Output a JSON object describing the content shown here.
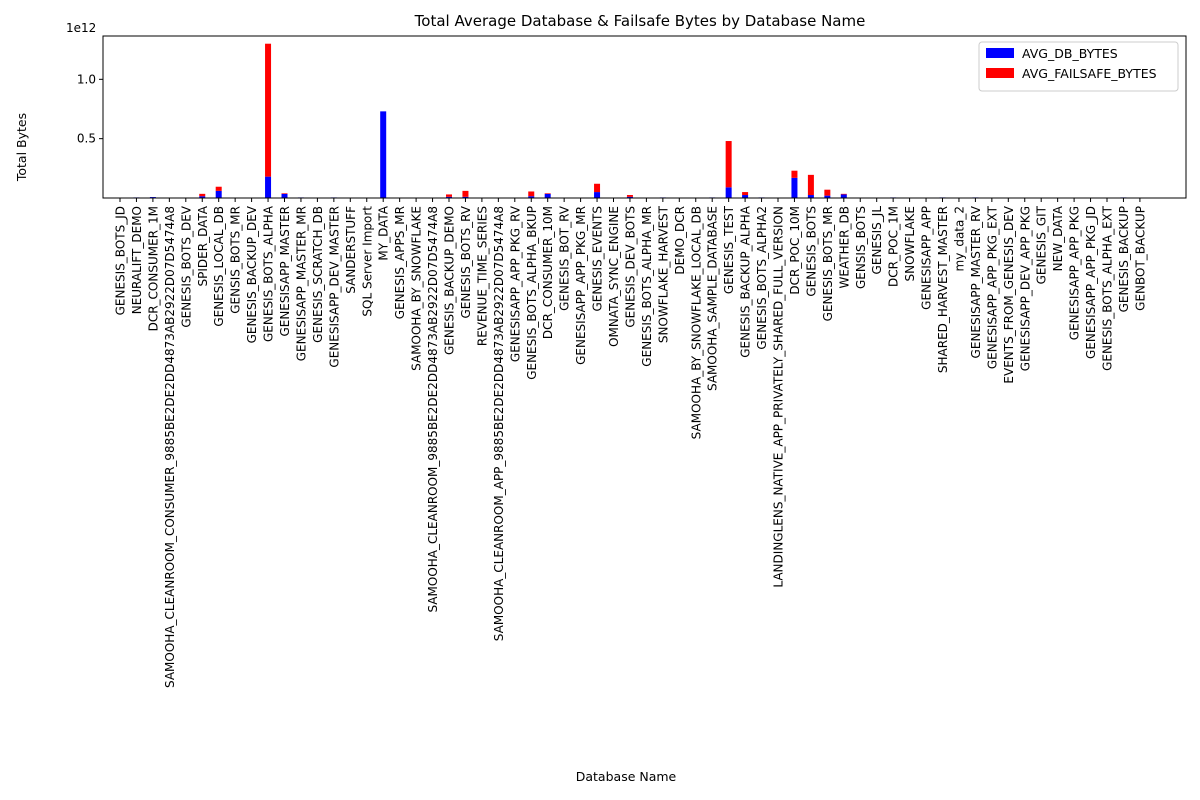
{
  "chart_data": {
    "type": "bar",
    "stacked": true,
    "title": "Total Average Database & Failsafe Bytes by Database Name",
    "xlabel": "Database Name",
    "ylabel": "Total Bytes",
    "y_offset_label": "1e12",
    "ylim": [
      0,
      1365000000000.0
    ],
    "yticks": [
      500000000000.0,
      1000000000000.0
    ],
    "ytick_labels": [
      "0.5",
      "1.0"
    ],
    "legend_position": "top-right",
    "grid": false,
    "categories": [
      "GENESIS_BOTS_JD",
      "NEURALIFT_DEMO",
      "DCR_CONSUMER_1M",
      "SAMOOHA_CLEANROOM_CONSUMER_9885BE2DE2DD4873AB2922D07D5474A8",
      "GENESIS_BOTS_DEV",
      "SPIDER_DATA",
      "GENESIS_LOCAL_DB",
      "GENSIS_BOTS_MR",
      "GENESIS_BACKUP_DEV",
      "GENESIS_BOTS_ALPHA",
      "GENESISAPP_MASTER",
      "GENESISAPP_MASTER_MR",
      "GENESIS_SCRATCH_DB",
      "GENESISAPP_DEV_MASTER",
      "SANDERSTUFF",
      "SQL Server Import",
      "MY_DATA",
      "GENESIS_APPS_MR",
      "SAMOOHA_BY_SNOWFLAKE",
      "SAMOOHA_CLEANROOM_9885BE2DE2DD4873AB2922D07D5474A8",
      "GENESIS_BACKUP_DEMO",
      "GENESIS_BOTS_RV",
      "REVENUE_TIME_SERIES",
      "SAMOOHA_CLEANROOM_APP_9885BE2DE2DD4873AB2922D07D5474A8",
      "GENESISAPP_APP_PKG_RV",
      "GENESIS_BOTS_ALPHA_BKUP",
      "DCR_CONSUMER_10M",
      "GENESIS_BOT_RV",
      "GENESISAPP_APP_PKG_MR",
      "GENESIS_EVENTS",
      "OMNATA_SYNC_ENGINE",
      "GENESIS_DEV_BOTS",
      "GENESIS_BOTS_ALPHA_MR",
      "SNOWFLAKE_HARVEST",
      "DEMO_DCR",
      "SAMOOHA_BY_SNOWFLAKE_LOCAL_DB",
      "SAMOOHA_SAMPLE_DATABASE",
      "GENESIS_TEST",
      "GENESIS_BACKUP_ALPHA",
      "GENESIS_BOTS_ALPHA2",
      "LANDINGLENS_NATIVE_APP_PRIVATELY_SHARED_FULL_VERSION",
      "DCR_POC_10M",
      "GENESIS_BOTS",
      "GENESIS_BOTS_MR",
      "WEATHER_DB",
      "GENSIS_BOTS",
      "GENESIS_JL",
      "DCR_POC_1M",
      "SNOWFLAKE",
      "GENESISAPP_APP",
      "SHARED_HARVEST_MASTER",
      "my_data_2",
      "GENESISAPP_MASTER_RV",
      "GENESISAPP_APP_PKG_EXT",
      "EVENTS_FROM_GENESIS_DEV",
      "GENESISAPP_DEV_APP_PKG",
      "GENESIS_GIT",
      "NEW_DATA",
      "GENESISAPP_APP_PKG",
      "GENESISAPP_APP_PKG_JD",
      "GENESIS_BOTS_ALPHA_EXT",
      "GENESIS_BACKUP",
      "GENBOT_BACKUP"
    ],
    "series": [
      {
        "name": "AVG_DB_BYTES",
        "color": "#0000ff",
        "values": [
          0,
          5000000000.0,
          8000000000.0,
          0,
          0,
          15000000000.0,
          60000000000.0,
          0,
          0,
          180000000000.0,
          35000000000.0,
          5000000000.0,
          0,
          5000000000.0,
          0,
          0,
          730000000000.0,
          0,
          0,
          0,
          10000000000.0,
          10000000000.0,
          0,
          0,
          0,
          15000000000.0,
          35000000000.0,
          0,
          0,
          50000000000.0,
          0,
          10000000000.0,
          0,
          5000000000.0,
          0,
          0,
          5000000000.0,
          90000000000.0,
          25000000000.0,
          5000000000.0,
          0,
          170000000000.0,
          25000000000.0,
          20000000000.0,
          30000000000.0,
          0,
          0,
          5000000000.0,
          0,
          0,
          5000000000.0,
          0,
          5000000000.0,
          0,
          0,
          0,
          0,
          0,
          0,
          0,
          0,
          5000000000.0,
          0
        ]
      },
      {
        "name": "AVG_FAILSAFE_BYTES",
        "color": "#ff0000",
        "values": [
          0,
          0,
          0,
          0,
          0,
          20000000000.0,
          35000000000.0,
          0,
          0,
          1120000000000.0,
          5000000000.0,
          0,
          0,
          0,
          0,
          0,
          0,
          0,
          0,
          0,
          20000000000.0,
          50000000000.0,
          0,
          0,
          0,
          40000000000.0,
          5000000000.0,
          0,
          0,
          70000000000.0,
          0,
          15000000000.0,
          0,
          0,
          0,
          0,
          0,
          390000000000.0,
          25000000000.0,
          0,
          0,
          60000000000.0,
          170000000000.0,
          50000000000.0,
          5000000000.0,
          0,
          0,
          0,
          0,
          0,
          0,
          0,
          0,
          0,
          0,
          0,
          0,
          0,
          0,
          0,
          0,
          0,
          0
        ]
      }
    ]
  }
}
